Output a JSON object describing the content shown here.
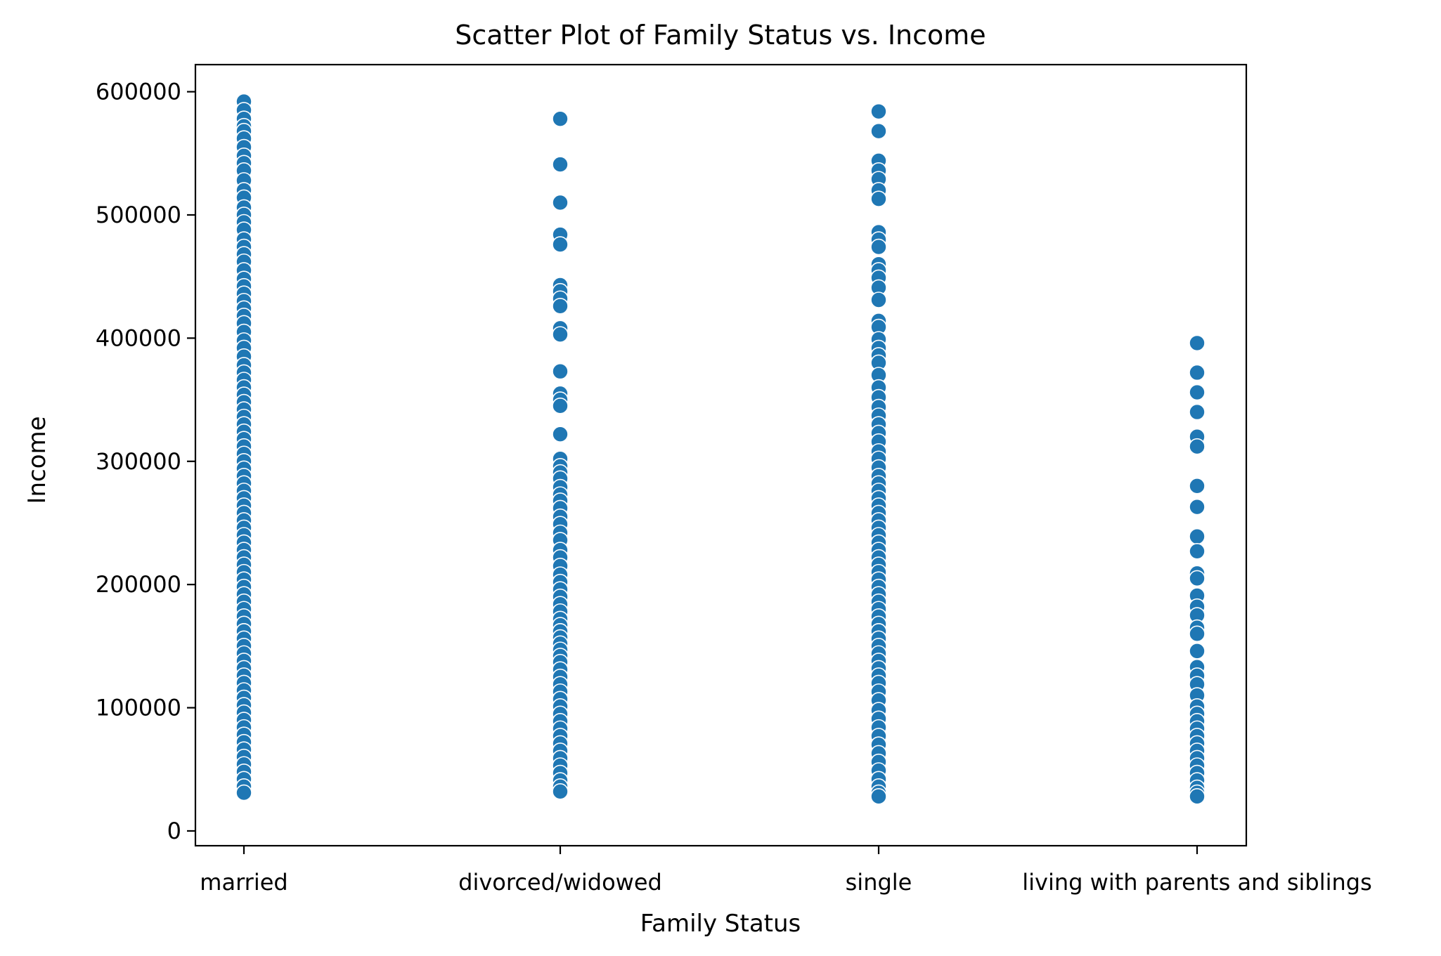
{
  "chart_data": {
    "type": "scatter",
    "title": "Scatter Plot of Family Status vs. Income",
    "xlabel": "Family Status",
    "ylabel": "Income",
    "categories": [
      "married",
      "divorced/widowed",
      "single",
      "living with parents and siblings"
    ],
    "yticks": [
      "0",
      "100000",
      "200000",
      "300000",
      "400000",
      "500000",
      "600000"
    ],
    "ylim": [
      -12000,
      622000
    ],
    "grid": false,
    "legend": "none",
    "point_color": "#1f77b4",
    "points": {
      "married": [
        592000,
        585000,
        578000,
        572000,
        568000,
        562000,
        555000,
        548000,
        542000,
        536000,
        528000,
        520000,
        514000,
        506000,
        500000,
        494000,
        488000,
        480000,
        474000,
        468000,
        462000,
        455000,
        448000,
        442000,
        436000,
        430000,
        424000,
        418000,
        412000,
        405000,
        398000,
        392000,
        385000,
        378000,
        372000,
        366000,
        360000,
        354000,
        348000,
        342000,
        336000,
        330000,
        324000,
        318000,
        312000,
        306000,
        300000,
        294000,
        288000,
        282000,
        276000,
        270000,
        264000,
        258000,
        252000,
        246000,
        240000,
        234000,
        228000,
        222000,
        216000,
        210000,
        204000,
        198000,
        192000,
        186000,
        180000,
        174000,
        168000,
        162000,
        156000,
        150000,
        144000,
        138000,
        132000,
        126000,
        120000,
        114000,
        108000,
        102000,
        96000,
        90000,
        84000,
        78000,
        72000,
        66000,
        60000,
        54000,
        48000,
        42000,
        36000,
        31000
      ],
      "divorced/widowed": [
        578000,
        541000,
        510000,
        484000,
        476000,
        443000,
        438000,
        432000,
        426000,
        408000,
        403000,
        373000,
        355000,
        350000,
        345000,
        322000,
        302000,
        296000,
        291000,
        286000,
        279000,
        273000,
        268000,
        262000,
        255000,
        249000,
        242000,
        236000,
        228000,
        222000,
        215000,
        208000,
        202000,
        196000,
        190000,
        184000,
        178000,
        172000,
        167000,
        162000,
        157000,
        152000,
        147000,
        142000,
        137000,
        131000,
        125000,
        119000,
        113000,
        107000,
        101000,
        95000,
        89000,
        83000,
        77000,
        71000,
        65000,
        59000,
        53000,
        47000,
        41000,
        36000,
        32000
      ],
      "single": [
        584000,
        568000,
        544000,
        536000,
        529000,
        520000,
        513000,
        486000,
        480000,
        474000,
        460000,
        455000,
        449000,
        441000,
        431000,
        414000,
        409000,
        399000,
        392000,
        386000,
        380000,
        370000,
        360000,
        352000,
        344000,
        337000,
        330000,
        323000,
        316000,
        308000,
        302000,
        295000,
        288000,
        282000,
        276000,
        270000,
        264000,
        258000,
        252000,
        246000,
        240000,
        234000,
        228000,
        222000,
        216000,
        210000,
        204000,
        198000,
        192000,
        186000,
        180000,
        174000,
        168000,
        162000,
        156000,
        150000,
        144000,
        138000,
        132000,
        126000,
        120000,
        113000,
        106000,
        98000,
        91000,
        84000,
        77000,
        70000,
        63000,
        56000,
        49000,
        42000,
        36000,
        31000,
        28000
      ],
      "living with parents and siblings": [
        396000,
        372000,
        356000,
        340000,
        320000,
        312000,
        280000,
        263000,
        239000,
        227000,
        209000,
        205000,
        191000,
        182000,
        175000,
        165000,
        160000,
        146000,
        133000,
        126000,
        119000,
        110000,
        101000,
        95000,
        89000,
        83000,
        77000,
        71000,
        65000,
        59000,
        53000,
        47000,
        41000,
        35000,
        31000,
        28000
      ]
    }
  }
}
